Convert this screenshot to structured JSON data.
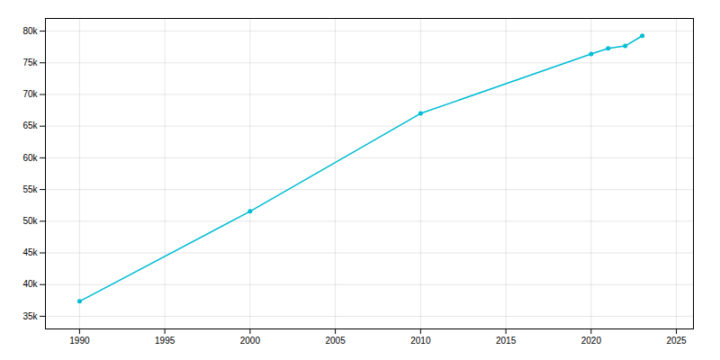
{
  "chart_data": {
    "type": "line",
    "x": [
      1990,
      2000,
      2010,
      2020,
      2021,
      2022,
      2023
    ],
    "values": [
      37352,
      51555,
      67000,
      76378,
      77269,
      77659,
      79270
    ],
    "color": "#00BCD4",
    "marker": "circle",
    "xlim": [
      1988,
      2026
    ],
    "ylim": [
      33000,
      82000
    ],
    "xticks": [
      1990,
      1995,
      2000,
      2005,
      2010,
      2015,
      2020,
      2025
    ],
    "yticks": [
      {
        "value": 35000,
        "label": "35k"
      },
      {
        "value": 40000,
        "label": "40k"
      },
      {
        "value": 45000,
        "label": "45k"
      },
      {
        "value": 50000,
        "label": "50k"
      },
      {
        "value": 55000,
        "label": "55k"
      },
      {
        "value": 60000,
        "label": "60k"
      },
      {
        "value": 65000,
        "label": "65k"
      },
      {
        "value": 70000,
        "label": "70k"
      },
      {
        "value": 75000,
        "label": "75k"
      },
      {
        "value": 80000,
        "label": "80k"
      }
    ],
    "grid": true
  }
}
